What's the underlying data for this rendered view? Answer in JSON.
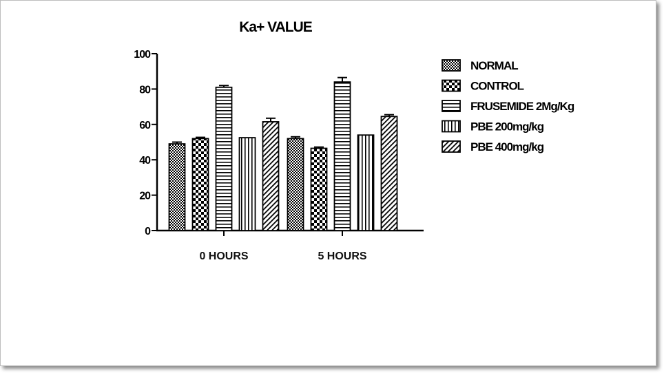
{
  "chart_data": {
    "type": "bar",
    "title": "Ka+ VALUE",
    "xlabel": "",
    "ylabel": "",
    "ylim": [
      0,
      100
    ],
    "yticks": [
      0,
      20,
      40,
      60,
      80,
      100
    ],
    "categories": [
      "0 HOURS",
      "5 HOURS"
    ],
    "series": [
      {
        "name": "NORMAL",
        "values": [
          49,
          52
        ],
        "errors": [
          1.0,
          1.0
        ],
        "pattern": "checker-small"
      },
      {
        "name": "CONTROL",
        "values": [
          52,
          46.5
        ],
        "errors": [
          0.7,
          0.7
        ],
        "pattern": "checker-large"
      },
      {
        "name": "FRUSEMIDE 2Mg/Kg",
        "values": [
          81,
          84
        ],
        "errors": [
          1.0,
          2.5
        ],
        "pattern": "horizontal-lines"
      },
      {
        "name": "PBE 200mg/kg",
        "values": [
          52.5,
          54
        ],
        "errors": [
          0,
          0
        ],
        "pattern": "vertical-lines"
      },
      {
        "name": "PBE 400mg/kg",
        "values": [
          61.5,
          64.5
        ],
        "errors": [
          2.0,
          1.0
        ],
        "pattern": "diagonal-lines"
      }
    ],
    "error_bars": true,
    "grid": false,
    "legend_position": "right"
  }
}
